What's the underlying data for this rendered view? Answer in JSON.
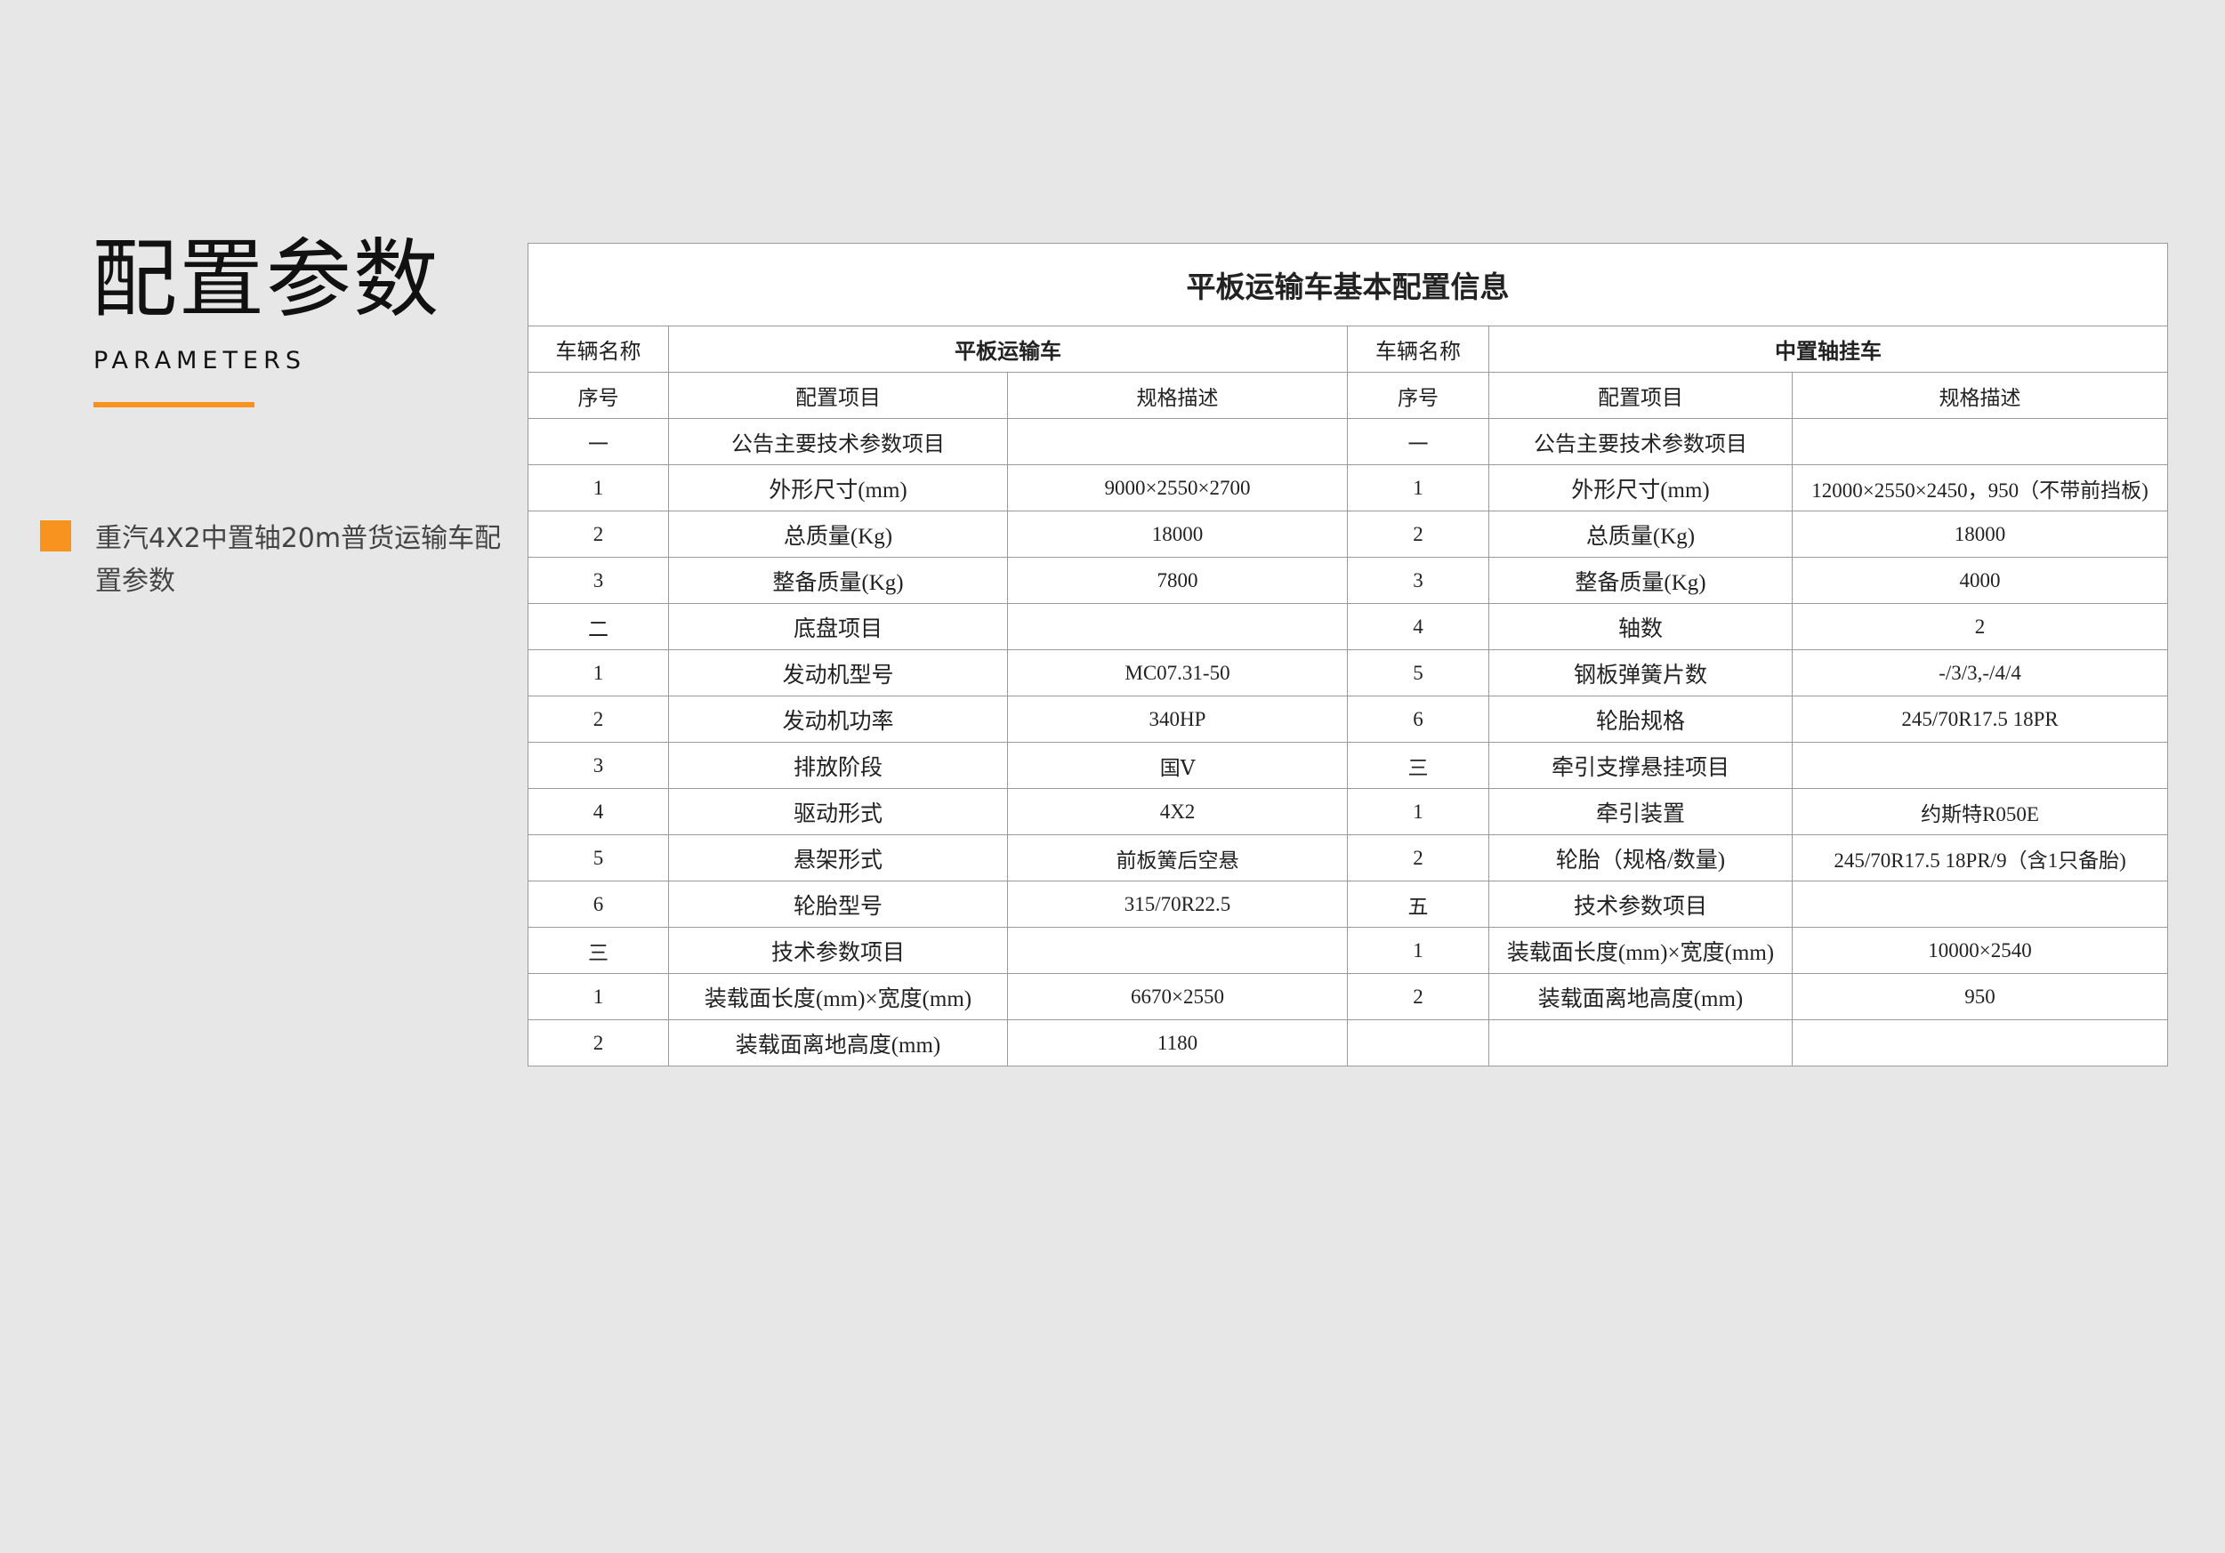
{
  "heading": {
    "title": "配置参数",
    "subtitle": "PARAMETERS"
  },
  "model": {
    "label": "重汽4X2中置轴20m普货运输车配置参数"
  },
  "table": {
    "title": "平板运输车基本配置信息",
    "name_label": "车辆名称",
    "left_vehicle": "平板运输车",
    "right_vehicle": "中置轴挂车",
    "col_seq": "序号",
    "col_item": "配置项目",
    "col_spec": "规格描述",
    "rows": [
      {
        "l": [
          "一",
          "公告主要技术参数项目",
          ""
        ],
        "r": [
          "一",
          "公告主要技术参数项目",
          ""
        ],
        "lb": true,
        "rb": true
      },
      {
        "l": [
          "1",
          "外形尺寸(mm)",
          "9000×2550×2700"
        ],
        "r": [
          "1",
          "外形尺寸(mm)",
          "12000×2550×2450，950（不带前挡板)"
        ]
      },
      {
        "l": [
          "2",
          "总质量(Kg)",
          "18000"
        ],
        "r": [
          "2",
          "总质量(Kg)",
          "18000"
        ]
      },
      {
        "l": [
          "3",
          "整备质量(Kg)",
          "7800"
        ],
        "r": [
          "3",
          "整备质量(Kg)",
          "4000"
        ]
      },
      {
        "l": [
          "二",
          "底盘项目",
          ""
        ],
        "r": [
          "4",
          "轴数",
          "2"
        ]
      },
      {
        "l": [
          "1",
          "发动机型号",
          "MC07.31-50"
        ],
        "r": [
          "5",
          "钢板弹簧片数",
          "-/3/3,-/4/4"
        ]
      },
      {
        "l": [
          "2",
          "发动机功率",
          "340HP"
        ],
        "r": [
          "6",
          "轮胎规格",
          "245/70R17.5 18PR"
        ]
      },
      {
        "l": [
          "3",
          "排放阶段",
          "国Ⅴ"
        ],
        "r": [
          "三",
          "牵引支撑悬挂项目",
          ""
        ]
      },
      {
        "l": [
          "4",
          "驱动形式",
          "4X2"
        ],
        "r": [
          "1",
          "牵引装置",
          "约斯特R050E"
        ]
      },
      {
        "l": [
          "5",
          "悬架形式",
          "前板簧后空悬"
        ],
        "r": [
          "2",
          "轮胎（规格/数量)",
          "245/70R17.5 18PR/9（含1只备胎)"
        ]
      },
      {
        "l": [
          "6",
          "轮胎型号",
          "315/70R22.5"
        ],
        "r": [
          "五",
          "技术参数项目",
          ""
        ]
      },
      {
        "l": [
          "三",
          "技术参数项目",
          ""
        ],
        "r": [
          "1",
          "装载面长度(mm)×宽度(mm)",
          "10000×2540"
        ]
      },
      {
        "l": [
          "1",
          "装载面长度(mm)×宽度(mm)",
          "6670×2550"
        ],
        "r": [
          "2",
          "装载面离地高度(mm)",
          "950"
        ]
      },
      {
        "l": [
          "2",
          "装载面离地高度(mm)",
          "1180"
        ],
        "r": [
          "",
          "",
          ""
        ]
      }
    ]
  },
  "colors": {
    "accent": "#f7931e",
    "background": "#e7e7e7"
  }
}
